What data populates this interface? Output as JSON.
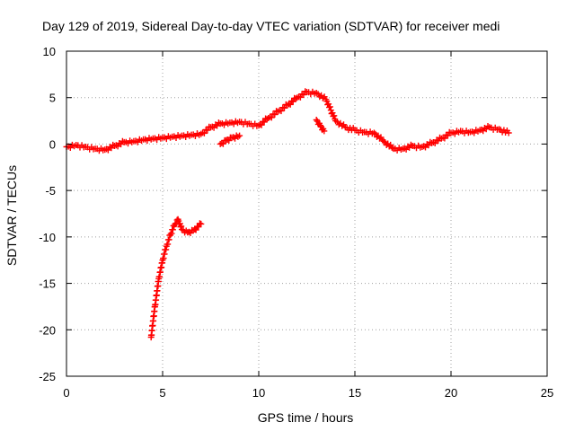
{
  "chart_data": {
    "type": "scatter",
    "title": "Day 129 of 2019, Sidereal Day-to-day VTEC variation (SDTVAR) for receiver medi",
    "xlabel": "GPS time / hours",
    "ylabel": "SDTVAR / TECUs",
    "xlim": [
      0,
      25
    ],
    "ylim": [
      -25,
      10
    ],
    "xticks": [
      0,
      5,
      10,
      15,
      20,
      25
    ],
    "yticks": [
      -25,
      -20,
      -15,
      -10,
      -5,
      0,
      5,
      10
    ],
    "grid": true,
    "marker": "plus",
    "color": "#ff0000",
    "series": [
      {
        "name": "main",
        "x": [
          0.0,
          0.5,
          1.0,
          1.5,
          2.0,
          2.5,
          3.0,
          3.5,
          4.0,
          4.5,
          5.0,
          5.5,
          6.0,
          6.5,
          7.0,
          7.5,
          8.0,
          8.5,
          9.0,
          9.5,
          10.0,
          10.5,
          11.0,
          11.5,
          12.0,
          12.5,
          13.0,
          13.5,
          14.0,
          14.5,
          15.0,
          15.5,
          16.0,
          16.5,
          17.0,
          17.5,
          18.0,
          18.5,
          19.0,
          19.5,
          20.0,
          20.5,
          21.0,
          21.5,
          22.0,
          22.5,
          23.0
        ],
        "y": [
          -0.3,
          -0.1,
          -0.3,
          -0.5,
          -0.6,
          -0.2,
          0.2,
          0.3,
          0.5,
          0.6,
          0.7,
          0.8,
          0.9,
          1.0,
          1.1,
          1.8,
          2.2,
          2.3,
          2.4,
          2.2,
          2.0,
          2.8,
          3.5,
          4.2,
          5.0,
          5.6,
          5.5,
          4.8,
          2.5,
          1.8,
          1.5,
          1.3,
          1.2,
          0.3,
          -0.5,
          -0.5,
          -0.2,
          -0.3,
          0.1,
          0.6,
          1.2,
          1.4,
          1.3,
          1.5,
          1.8,
          1.6,
          1.2
        ]
      },
      {
        "name": "segment-2",
        "x": [
          8.0,
          8.3,
          8.6,
          9.0
        ],
        "y": [
          0.0,
          0.4,
          0.7,
          0.9
        ]
      },
      {
        "name": "segment-3",
        "x": [
          13.0,
          13.2,
          13.4
        ],
        "y": [
          2.6,
          2.0,
          1.4
        ]
      },
      {
        "name": "segment-4",
        "x": [
          4.4,
          4.6,
          4.8,
          5.0,
          5.2,
          5.4,
          5.6,
          5.8,
          6.0,
          6.3,
          6.6,
          7.0
        ],
        "y": [
          -20.8,
          -17.5,
          -14.5,
          -12.5,
          -11.0,
          -9.8,
          -8.8,
          -8.1,
          -9.2,
          -9.5,
          -9.3,
          -8.6
        ]
      }
    ]
  }
}
